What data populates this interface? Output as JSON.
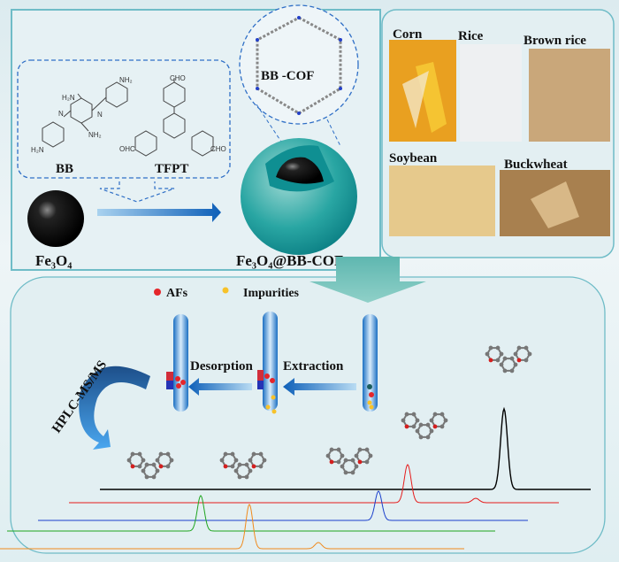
{
  "synthesis": {
    "monomer1": "BB",
    "monomer2": "TFPT",
    "cof_label": "BB -COF",
    "core_label": "Fe₃O₄",
    "composite_label": "Fe₃O₄@BB-COF",
    "chem_groups": {
      "nh2": "NH₂",
      "h2n": "H₂N",
      "n": "N",
      "cho": "CHO",
      "ohc": "OHC"
    }
  },
  "samples": {
    "items": [
      {
        "label": "Corn",
        "color": "#e9a020"
      },
      {
        "label": "Rice",
        "color": "#eef0f2"
      },
      {
        "label": "Brown rice",
        "color": "#c9a77a"
      },
      {
        "label": "Soybean",
        "color": "#e6c98c"
      },
      {
        "label": "Buckwheat",
        "color": "#a8804f"
      }
    ]
  },
  "process": {
    "legend": [
      {
        "label": "AFs",
        "color": "#e5262b"
      },
      {
        "label": "Impurities",
        "color": "#f7c22a"
      }
    ],
    "steps": {
      "desorption": "Desorption",
      "extraction": "Extraction",
      "analysis": "HPLC-MS/MS"
    }
  },
  "chromatograms": {
    "traces": [
      {
        "color": "#000000",
        "peaks": [
          1.0
        ]
      },
      {
        "color": "#e51b1b",
        "peaks": [
          1.0,
          0.08
        ]
      },
      {
        "color": "#1a3fcc",
        "peaks": [
          1.0
        ]
      },
      {
        "color": "#1fa51f",
        "peaks": [
          1.0
        ]
      },
      {
        "color": "#f08a1c",
        "peaks": [
          1.0,
          0.15
        ]
      }
    ]
  },
  "colors": {
    "panel_border": "#5fb3bf",
    "dash": "#2f6fc6",
    "arrow": "#1565c0",
    "cof_shell": "#1a9ea0"
  }
}
